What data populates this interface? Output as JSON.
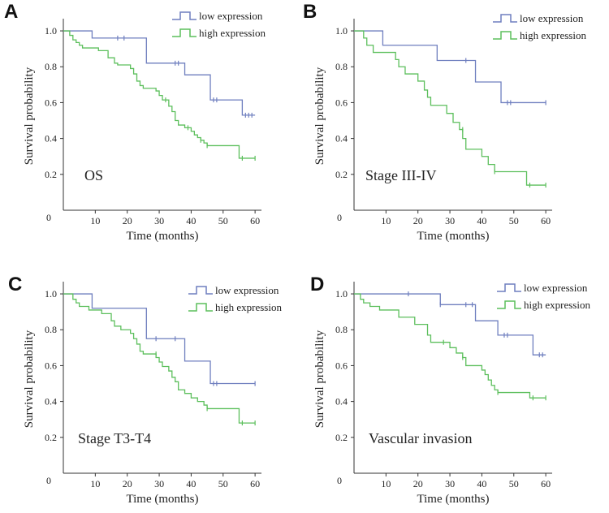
{
  "colors": {
    "low": "#6f7fbf",
    "high": "#5cbf5c",
    "axis": "#333333"
  },
  "chart_data": [
    {
      "type": "line",
      "panel": "A",
      "annotation": "OS",
      "xlabel": "Time  (months)",
      "ylabel": "Survival probability",
      "xlim": [
        0,
        62
      ],
      "ylim": [
        0,
        1.05
      ],
      "x_ticks": [
        10,
        20,
        30,
        40,
        50,
        60
      ],
      "y_ticks": [
        "1.0",
        "0.8",
        "0.6",
        "0.4",
        "0.2"
      ],
      "origin_label": "0",
      "legend": [
        "low expression",
        "high expression"
      ],
      "series": [
        {
          "name": "low expression",
          "steps": [
            [
              0,
              1.0
            ],
            [
              9,
              0.96
            ],
            [
              26,
              0.82
            ],
            [
              38,
              0.755
            ],
            [
              46,
              0.615
            ],
            [
              56,
              0.53
            ],
            [
              60,
              0.53
            ]
          ],
          "censors": [
            [
              17,
              0.96
            ],
            [
              19,
              0.96
            ],
            [
              35,
              0.82
            ],
            [
              36,
              0.82
            ],
            [
              47,
              0.615
            ],
            [
              48,
              0.615
            ],
            [
              57,
              0.53
            ],
            [
              58,
              0.53
            ],
            [
              59,
              0.53
            ]
          ]
        },
        {
          "name": "high expression",
          "steps": [
            [
              0,
              1.0
            ],
            [
              2,
              0.975
            ],
            [
              3,
              0.95
            ],
            [
              4,
              0.935
            ],
            [
              5,
              0.92
            ],
            [
              6,
              0.905
            ],
            [
              11,
              0.89
            ],
            [
              14,
              0.85
            ],
            [
              16,
              0.82
            ],
            [
              17,
              0.81
            ],
            [
              21,
              0.79
            ],
            [
              22,
              0.76
            ],
            [
              23,
              0.72
            ],
            [
              24,
              0.695
            ],
            [
              25,
              0.68
            ],
            [
              29,
              0.665
            ],
            [
              30,
              0.64
            ],
            [
              31,
              0.615
            ],
            [
              33,
              0.58
            ],
            [
              34,
              0.55
            ],
            [
              35,
              0.5
            ],
            [
              36,
              0.475
            ],
            [
              38,
              0.46
            ],
            [
              40,
              0.44
            ],
            [
              41,
              0.42
            ],
            [
              42,
              0.405
            ],
            [
              43,
              0.39
            ],
            [
              44,
              0.375
            ],
            [
              45,
              0.36
            ],
            [
              55,
              0.29
            ],
            [
              60,
              0.29
            ]
          ],
          "censors": [
            [
              32,
              0.615
            ],
            [
              39,
              0.46
            ],
            [
              43,
              0.39
            ],
            [
              45,
              0.36
            ],
            [
              56,
              0.29
            ],
            [
              60,
              0.29
            ]
          ]
        }
      ]
    },
    {
      "type": "line",
      "panel": "B",
      "annotation": "Stage III-IV",
      "xlabel": "Time  (months)",
      "ylabel": "Survival probability",
      "xlim": [
        0,
        62
      ],
      "ylim": [
        0,
        1.05
      ],
      "x_ticks": [
        10,
        20,
        30,
        40,
        50,
        60
      ],
      "y_ticks": [
        "1.0",
        "0.8",
        "0.6",
        "0.4",
        "0.2"
      ],
      "origin_label": "0",
      "legend": [
        "low expression",
        "high expression"
      ],
      "series": [
        {
          "name": "low expression",
          "steps": [
            [
              0,
              1.0
            ],
            [
              9,
              0.92
            ],
            [
              26,
              0.835
            ],
            [
              38,
              0.715
            ],
            [
              46,
              0.6
            ],
            [
              60,
              0.6
            ]
          ],
          "censors": [
            [
              35,
              0.835
            ],
            [
              48,
              0.6
            ],
            [
              49,
              0.6
            ],
            [
              60,
              0.6
            ]
          ]
        },
        {
          "name": "high expression",
          "steps": [
            [
              0,
              1.0
            ],
            [
              3,
              0.96
            ],
            [
              4,
              0.92
            ],
            [
              6,
              0.88
            ],
            [
              13,
              0.84
            ],
            [
              14,
              0.8
            ],
            [
              16,
              0.76
            ],
            [
              20,
              0.72
            ],
            [
              22,
              0.67
            ],
            [
              23,
              0.63
            ],
            [
              24,
              0.585
            ],
            [
              29,
              0.54
            ],
            [
              31,
              0.49
            ],
            [
              33,
              0.45
            ],
            [
              34,
              0.4
            ],
            [
              35,
              0.34
            ],
            [
              40,
              0.3
            ],
            [
              42,
              0.255
            ],
            [
              44,
              0.215
            ],
            [
              54,
              0.14
            ],
            [
              60,
              0.14
            ]
          ],
          "censors": [
            [
              34,
              0.45
            ],
            [
              44,
              0.215
            ],
            [
              55,
              0.14
            ],
            [
              60,
              0.14
            ]
          ]
        }
      ]
    },
    {
      "type": "line",
      "panel": "C",
      "annotation": "Stage T3-T4",
      "xlabel": "Time  (months)",
      "ylabel": "Survival probability",
      "xlim": [
        0,
        62
      ],
      "ylim": [
        0,
        1.05
      ],
      "x_ticks": [
        10,
        20,
        30,
        40,
        50,
        60
      ],
      "y_ticks": [
        "1.0",
        "0.8",
        "0.6",
        "0.4",
        "0.2"
      ],
      "origin_label": "0",
      "legend": [
        "low expression",
        "high expression"
      ],
      "series": [
        {
          "name": "low expression",
          "steps": [
            [
              0,
              1.0
            ],
            [
              9,
              0.92
            ],
            [
              26,
              0.75
            ],
            [
              38,
              0.625
            ],
            [
              46,
              0.5
            ],
            [
              60,
              0.5
            ]
          ],
          "censors": [
            [
              29,
              0.75
            ],
            [
              35,
              0.75
            ],
            [
              47,
              0.5
            ],
            [
              48,
              0.5
            ],
            [
              60,
              0.5
            ]
          ]
        },
        {
          "name": "high expression",
          "steps": [
            [
              0,
              1.0
            ],
            [
              3,
              0.97
            ],
            [
              4,
              0.95
            ],
            [
              5,
              0.93
            ],
            [
              8,
              0.91
            ],
            [
              12,
              0.89
            ],
            [
              15,
              0.85
            ],
            [
              16,
              0.82
            ],
            [
              18,
              0.8
            ],
            [
              21,
              0.78
            ],
            [
              22,
              0.75
            ],
            [
              23,
              0.72
            ],
            [
              24,
              0.68
            ],
            [
              25,
              0.665
            ],
            [
              29,
              0.645
            ],
            [
              30,
              0.62
            ],
            [
              31,
              0.595
            ],
            [
              33,
              0.57
            ],
            [
              34,
              0.535
            ],
            [
              35,
              0.51
            ],
            [
              36,
              0.465
            ],
            [
              38,
              0.445
            ],
            [
              40,
              0.42
            ],
            [
              42,
              0.4
            ],
            [
              44,
              0.38
            ],
            [
              45,
              0.36
            ],
            [
              55,
              0.28
            ],
            [
              60,
              0.28
            ]
          ],
          "censors": [
            [
              29,
              0.665
            ],
            [
              45,
              0.36
            ],
            [
              56,
              0.28
            ],
            [
              60,
              0.28
            ]
          ]
        }
      ]
    },
    {
      "type": "line",
      "panel": "D",
      "annotation": "Vascular invasion",
      "xlabel": "Time  (months)",
      "ylabel": "Survival probability",
      "xlim": [
        0,
        62
      ],
      "ylim": [
        0,
        1.05
      ],
      "x_ticks": [
        10,
        20,
        30,
        40,
        50,
        60
      ],
      "y_ticks": [
        "1.0",
        "0.8",
        "0.6",
        "0.4",
        "0.2"
      ],
      "origin_label": "0",
      "legend": [
        "low expression",
        "high expression"
      ],
      "series": [
        {
          "name": "low expression",
          "steps": [
            [
              0,
              1.0
            ],
            [
              27,
              0.94
            ],
            [
              38,
              0.85
            ],
            [
              45,
              0.77
            ],
            [
              56,
              0.66
            ],
            [
              60,
              0.66
            ]
          ],
          "censors": [
            [
              17,
              1.0
            ],
            [
              27,
              0.94
            ],
            [
              35,
              0.94
            ],
            [
              37,
              0.94
            ],
            [
              47,
              0.77
            ],
            [
              48,
              0.77
            ],
            [
              58,
              0.66
            ],
            [
              59,
              0.66
            ]
          ]
        },
        {
          "name": "high expression",
          "steps": [
            [
              0,
              1.0
            ],
            [
              2,
              0.97
            ],
            [
              3,
              0.95
            ],
            [
              5,
              0.93
            ],
            [
              8,
              0.91
            ],
            [
              14,
              0.87
            ],
            [
              19,
              0.83
            ],
            [
              23,
              0.77
            ],
            [
              24,
              0.73
            ],
            [
              30,
              0.7
            ],
            [
              32,
              0.67
            ],
            [
              34,
              0.645
            ],
            [
              35,
              0.6
            ],
            [
              40,
              0.575
            ],
            [
              41,
              0.55
            ],
            [
              42,
              0.52
            ],
            [
              43,
              0.49
            ],
            [
              44,
              0.465
            ],
            [
              45,
              0.45
            ],
            [
              55,
              0.42
            ],
            [
              60,
              0.42
            ]
          ],
          "censors": [
            [
              28,
              0.73
            ],
            [
              34,
              0.645
            ],
            [
              45,
              0.45
            ],
            [
              56,
              0.42
            ],
            [
              60,
              0.42
            ]
          ]
        }
      ]
    }
  ]
}
